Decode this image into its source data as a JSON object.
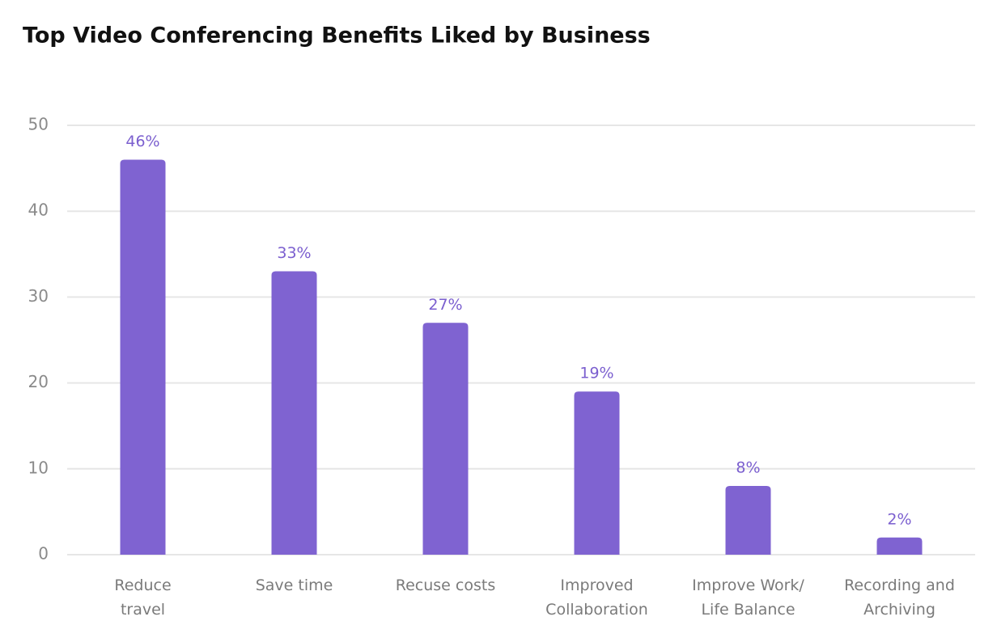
{
  "chart_data": {
    "type": "bar",
    "title": "Top Video Conferencing Benefits Liked by Business",
    "categories": [
      [
        "Reduce",
        "travel"
      ],
      [
        "Save time"
      ],
      [
        "Recuse costs"
      ],
      [
        "Improved",
        "Collaboration"
      ],
      [
        "Improve Work/",
        "Life Balance"
      ],
      [
        "Recording and",
        "Archiving"
      ]
    ],
    "values": [
      46,
      33,
      27,
      19,
      8,
      2
    ],
    "value_labels": [
      "46%",
      "33%",
      "27%",
      "19%",
      "8%",
      "2%"
    ],
    "color": "#7f63d1",
    "ylim": [
      0,
      50
    ],
    "yticks": [
      0,
      10,
      20,
      30,
      40,
      50
    ],
    "grid": true
  }
}
